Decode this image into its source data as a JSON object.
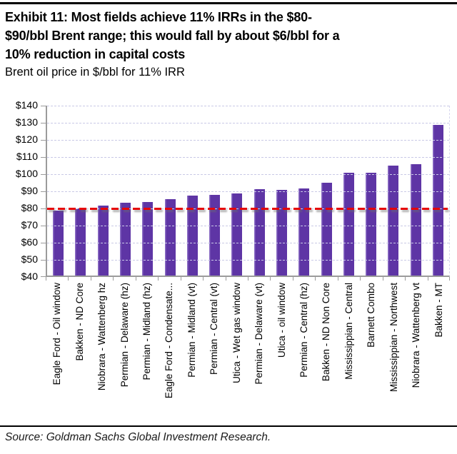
{
  "header": {
    "title_lines": [
      "Exhibit 11: Most fields achieve 11% IRRs in the $80-",
      "$90/bbl Brent range; this would fall by about $6/bbl for a",
      "10% reduction in capital costs"
    ],
    "subtitle": "Brent oil price in $/bbl for 11% IRR"
  },
  "chart_data": {
    "type": "bar",
    "title": "Brent oil price in $/bbl for 11% IRR",
    "categories": [
      "Eagle Ford - Oil window",
      "Bakken - ND Core",
      "Niobrara - Wattenberg hz",
      "Permian - Delaware (hz)",
      "Permian - Midland (hz)",
      "Eagle Ford - Condensate...",
      "Permian - Midland (vt)",
      "Permian - Central (vt)",
      "Utica - Wet gas window",
      "Permian - Delaware (vt)",
      "Utica - oil window",
      "Permian - Central (hz)",
      "Bakken - ND Non Core",
      "Mississippian - Central",
      "Barnett Combo",
      "Mississippian - Northwest",
      "Niobrara - Wattenberg vt",
      "Bakken - MT"
    ],
    "values": [
      78,
      79,
      81,
      82.5,
      83,
      84.5,
      86.5,
      87,
      88,
      90.5,
      90,
      91,
      94,
      100,
      100,
      104,
      105,
      128
    ],
    "xlabel": "",
    "ylabel": "",
    "ylim": [
      40,
      140
    ],
    "ytick_step": 10,
    "ytick_prefix": "$",
    "grid": "horizontal-dashed",
    "legend_position": "none",
    "reference_line": {
      "value": 80,
      "style": "dashed",
      "color": "#e60505"
    },
    "bar_color": "#5e35a5",
    "bar_edge_color": "#8a6cc4",
    "gridline_color": "#c9c9e6",
    "axis_color": "#9b9b9b"
  },
  "footer": {
    "source": "Source: Goldman Sachs Global Investment Research."
  }
}
